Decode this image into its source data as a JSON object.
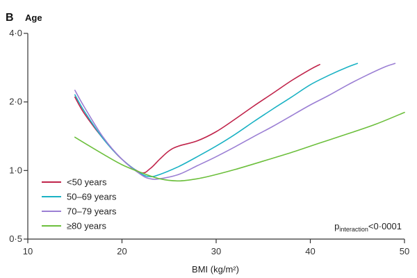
{
  "chart_data": {
    "type": "line",
    "panel_label": "B",
    "title": "Age",
    "xlabel": "BMI (kg/m²)",
    "ylabel": "",
    "xlim": [
      10,
      50
    ],
    "ylim": [
      0.5,
      4.0
    ],
    "y_scale": "log",
    "x_ticks": [
      10,
      20,
      30,
      40,
      50
    ],
    "x_tick_labels": [
      "10",
      "20",
      "30",
      "40",
      "50"
    ],
    "y_ticks": [
      0.5,
      1.0,
      2.0,
      4.0
    ],
    "y_tick_labels": [
      "0·5",
      "1·0",
      "2·0",
      "4·0"
    ],
    "grid": false,
    "legend_position": "bottom-left",
    "annotation": {
      "main": "p",
      "sub": "interaction",
      "suffix": "<0·0001"
    },
    "series": [
      {
        "name": "<50 years",
        "color": "#c0234a",
        "x": [
          15,
          16,
          18,
          20,
          22,
          23,
          24,
          25,
          26,
          28,
          30,
          32,
          34,
          36,
          38,
          40,
          41
        ],
        "y": [
          2.1,
          1.78,
          1.38,
          1.12,
          0.98,
          1.02,
          1.12,
          1.22,
          1.28,
          1.35,
          1.48,
          1.68,
          1.92,
          2.18,
          2.48,
          2.78,
          2.92
        ]
      },
      {
        "name": "50–69 years",
        "color": "#1ab2c4",
        "x": [
          15,
          16,
          18,
          20,
          22,
          23,
          24,
          26,
          28,
          30,
          32,
          34,
          36,
          38,
          40,
          42,
          44,
          45
        ],
        "y": [
          2.15,
          1.82,
          1.38,
          1.12,
          0.97,
          0.94,
          0.96,
          1.04,
          1.15,
          1.28,
          1.44,
          1.64,
          1.86,
          2.1,
          2.38,
          2.62,
          2.85,
          2.95
        ]
      },
      {
        "name": "70–79 years",
        "color": "#9b7fd4",
        "x": [
          15,
          16,
          18,
          20,
          22,
          23,
          24,
          26,
          28,
          30,
          32,
          34,
          36,
          38,
          40,
          42,
          44,
          46,
          48,
          49
        ],
        "y": [
          2.25,
          1.9,
          1.4,
          1.12,
          0.96,
          0.92,
          0.92,
          0.96,
          1.05,
          1.15,
          1.27,
          1.41,
          1.56,
          1.74,
          1.94,
          2.14,
          2.38,
          2.62,
          2.86,
          2.95
        ]
      },
      {
        "name": "≥80 years",
        "color": "#6cbf3c",
        "x": [
          15,
          18,
          20,
          22,
          24,
          26,
          28,
          30,
          32,
          35,
          38,
          41,
          44,
          47,
          50
        ],
        "y": [
          1.4,
          1.18,
          1.06,
          0.98,
          0.92,
          0.9,
          0.92,
          0.96,
          1.01,
          1.1,
          1.2,
          1.32,
          1.45,
          1.6,
          1.8
        ]
      }
    ]
  }
}
